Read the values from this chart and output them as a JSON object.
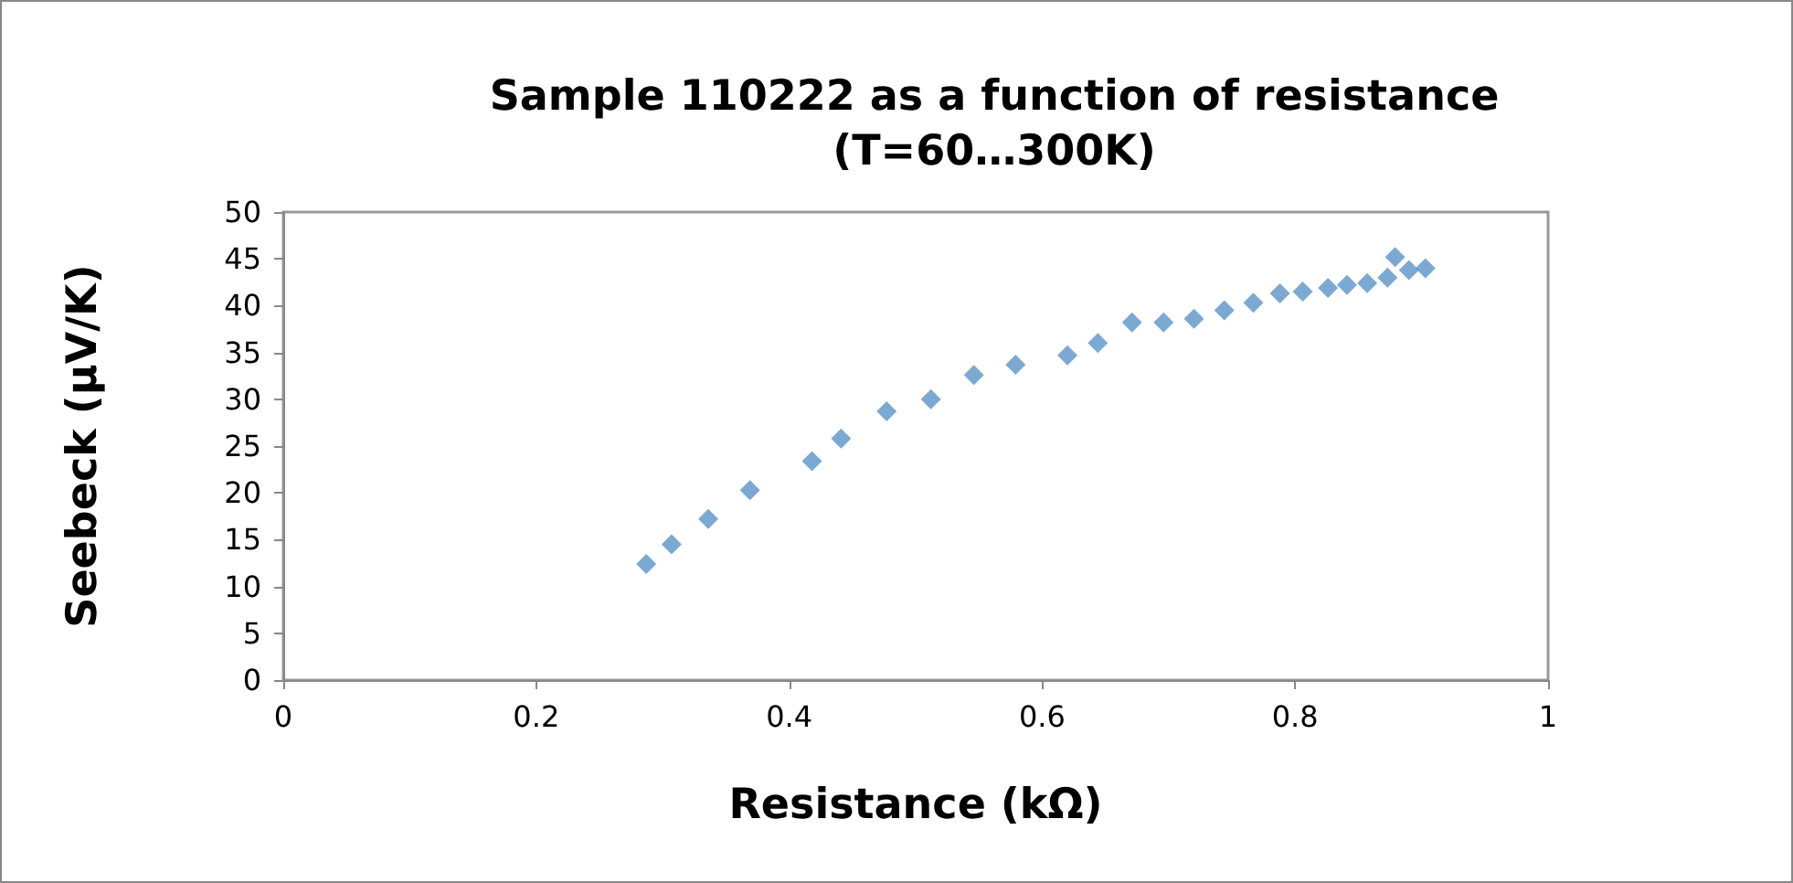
{
  "chart_data": {
    "type": "scatter",
    "title": "Sample 110222 as a function of resistance\n(T=60…300K)",
    "xlabel": "Resistance (kΩ)",
    "ylabel": "Seebeck (µV/K)",
    "x": [
      0.287,
      0.307,
      0.336,
      0.369,
      0.418,
      0.441,
      0.477,
      0.512,
      0.546,
      0.579,
      0.62,
      0.644,
      0.671,
      0.696,
      0.72,
      0.744,
      0.767,
      0.788,
      0.806,
      0.826,
      0.841,
      0.857,
      0.873,
      0.879,
      0.89,
      0.903
    ],
    "series": [
      {
        "color": "#5b93c8",
        "values": [
          12.4,
          14.5,
          17.2,
          20.3,
          23.4,
          25.8,
          28.7,
          30.0,
          32.6,
          33.7,
          34.7,
          36.0,
          38.2,
          38.2,
          38.6,
          39.5,
          40.3,
          41.3,
          41.5,
          41.9,
          42.2,
          42.4,
          43.0,
          45.2,
          43.8,
          44.0
        ]
      }
    ],
    "xlim": [
      0,
      1
    ],
    "xticks": [
      0,
      0.2,
      0.4,
      0.6,
      0.8,
      1
    ],
    "ylim": [
      0,
      50
    ],
    "yticks": [
      0,
      5,
      10,
      15,
      20,
      25,
      30,
      35,
      40,
      45,
      50
    ],
    "grid": false,
    "marker": "diamond"
  }
}
